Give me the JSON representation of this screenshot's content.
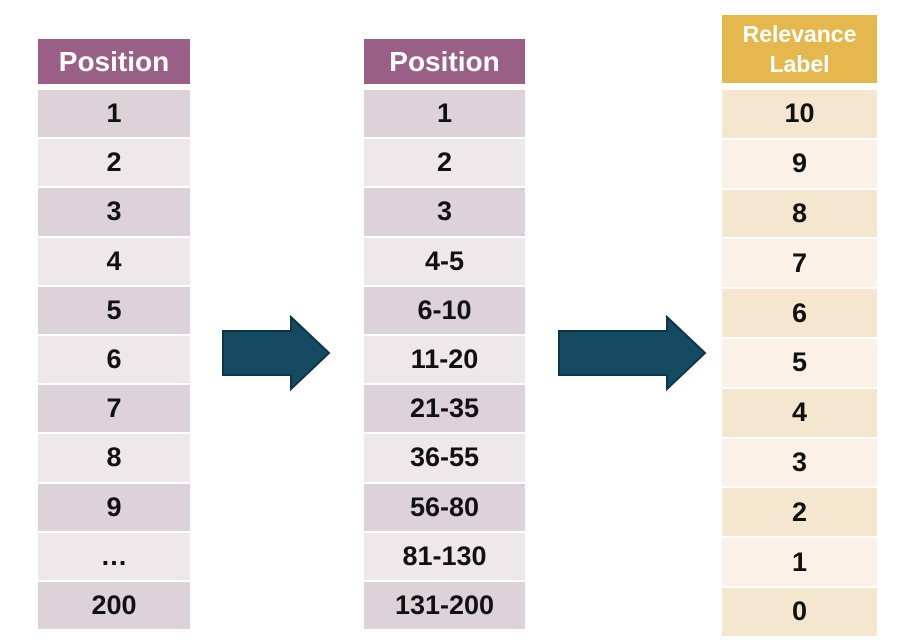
{
  "colors": {
    "position_header": "#9a5f86",
    "position_row_dark": "#ddd2d8",
    "position_row_light": "#efe8eb",
    "label_header": "#e4b84d",
    "label_row_dark": "#f5e6d0",
    "label_row_light": "#fbf1e6",
    "arrow_fill": "#154a63",
    "arrow_stroke": "#0d3547"
  },
  "table_positions": {
    "header": "Position",
    "rows": [
      "1",
      "2",
      "3",
      "4",
      "5",
      "6",
      "7",
      "8",
      "9",
      "…",
      "200"
    ]
  },
  "table_position_buckets": {
    "header": "Position",
    "rows": [
      "1",
      "2",
      "3",
      "4-5",
      "6-10",
      "11-20",
      "21-35",
      "36-55",
      "56-80",
      "81-130",
      "131-200"
    ]
  },
  "table_relevance": {
    "header_line1": "Relevance",
    "header_line2": "Label",
    "rows": [
      "10",
      "9",
      "8",
      "7",
      "6",
      "5",
      "4",
      "3",
      "2",
      "1",
      "0"
    ]
  },
  "arrows": [
    "right-arrow-icon",
    "right-arrow-icon"
  ]
}
